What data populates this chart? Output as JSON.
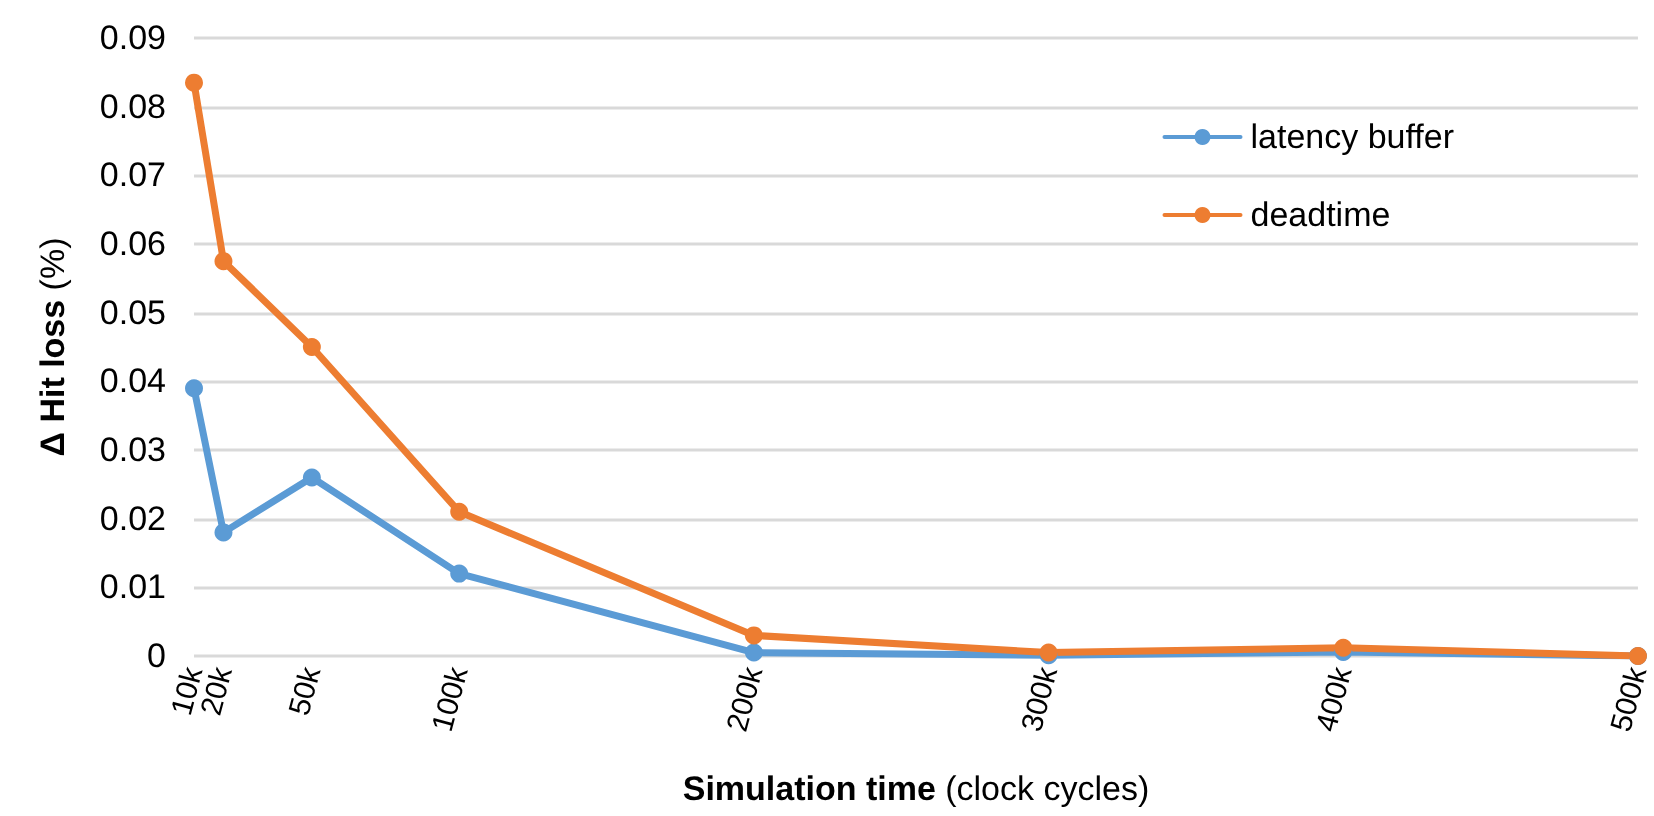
{
  "chart_data": {
    "type": "line",
    "xlabel": "Simulation time (clock cycles)",
    "ylabel": "Δ Hit loss (%)",
    "x": [
      10,
      20,
      50,
      100,
      200,
      300,
      400,
      500
    ],
    "series": [
      {
        "name": "latency buffer",
        "color": "#5b9bd5",
        "values": [
          0.039,
          0.018,
          0.026,
          0.012,
          0.0005,
          0.0001,
          0.0006,
          0
        ]
      },
      {
        "name": "deadtime",
        "color": "#ed7d31",
        "values": [
          0.0835,
          0.0575,
          0.045,
          0.021,
          0.003,
          0.0005,
          0.0012,
          0
        ]
      }
    ],
    "xlim": [
      10,
      500
    ],
    "xticks": [
      {
        "value": 10,
        "label": "10k"
      },
      {
        "value": 20,
        "label": "20k"
      },
      {
        "value": 50,
        "label": "50k"
      },
      {
        "value": 100,
        "label": "100k"
      },
      {
        "value": 200,
        "label": "200k"
      },
      {
        "value": 300,
        "label": "300k"
      },
      {
        "value": 400,
        "label": "400k"
      },
      {
        "value": 500,
        "label": "500k"
      }
    ],
    "ylim": [
      0,
      0.09
    ],
    "yticks": [
      0,
      0.01,
      0.02,
      0.03,
      0.04,
      0.05,
      0.06,
      0.07,
      0.08,
      0.09
    ],
    "grid": "y",
    "legend": "top right",
    "marker": "circle",
    "line_style": "solid"
  }
}
